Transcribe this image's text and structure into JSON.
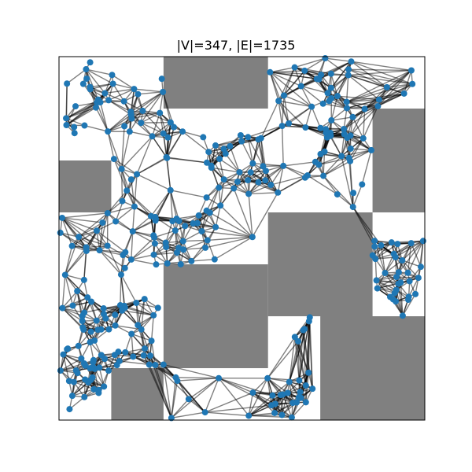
{
  "figure": {
    "title": "|V|=347, |E|=1735"
  },
  "colors": {
    "obstacle": "#808080",
    "node": "#1f77b4",
    "edge": "#000000",
    "frame": "#000000",
    "background": "#ffffff"
  },
  "obstacles": [
    {
      "name": "obstacle-top-center",
      "x": 2,
      "y": 6,
      "w": 2,
      "h": 1
    },
    {
      "name": "obstacle-left",
      "x": 0,
      "y": 4,
      "w": 1,
      "h": 1
    },
    {
      "name": "obstacle-right-upper",
      "x": 6,
      "y": 4,
      "w": 1,
      "h": 2
    },
    {
      "name": "obstacle-center-step",
      "x": 4,
      "y": 2,
      "w": 2,
      "h": 2
    },
    {
      "name": "obstacle-center-low",
      "x": 2,
      "y": 1,
      "w": 2,
      "h": 2
    },
    {
      "name": "obstacle-bottom-right",
      "x": 5,
      "y": 0,
      "w": 2,
      "h": 2
    },
    {
      "name": "obstacle-bottom-left",
      "x": 1,
      "y": 0,
      "w": 1,
      "h": 1
    }
  ]
}
